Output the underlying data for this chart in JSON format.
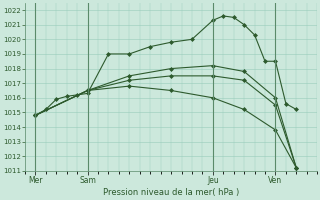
{
  "background_color": "#cce8dc",
  "grid_color": "#99ccbb",
  "line_color": "#2d5a2d",
  "title": "Pression niveau de la mer( hPa )",
  "ylim": [
    1011,
    1022.5
  ],
  "yticks": [
    1011,
    1012,
    1013,
    1014,
    1015,
    1016,
    1017,
    1018,
    1019,
    1020,
    1021,
    1022
  ],
  "day_labels": [
    "Mer",
    "Sam",
    "Jeu",
    "Ven"
  ],
  "day_positions": [
    0,
    5,
    17,
    23
  ],
  "vline_positions": [
    0,
    5,
    17,
    23
  ],
  "xlim": [
    -1,
    27
  ],
  "series": [
    {
      "x": [
        0,
        1,
        2,
        3,
        4,
        5,
        7,
        9,
        11,
        13,
        15,
        17,
        18,
        19,
        20,
        21,
        22,
        23,
        24,
        25
      ],
      "y": [
        1014.8,
        1015.2,
        1015.9,
        1016.1,
        1016.2,
        1016.3,
        1019.0,
        1019.0,
        1019.5,
        1019.8,
        1020.0,
        1021.3,
        1021.6,
        1021.5,
        1021.0,
        1020.3,
        1018.5,
        1018.5,
        1015.6,
        1015.2
      ]
    },
    {
      "x": [
        0,
        5,
        9,
        13,
        17,
        20,
        23,
        25
      ],
      "y": [
        1014.8,
        1016.5,
        1016.8,
        1016.5,
        1016.0,
        1015.2,
        1013.8,
        1011.2
      ]
    },
    {
      "x": [
        0,
        5,
        9,
        13,
        17,
        20,
        23,
        25
      ],
      "y": [
        1014.8,
        1016.5,
        1017.2,
        1017.5,
        1017.5,
        1017.2,
        1015.5,
        1011.2
      ]
    },
    {
      "x": [
        0,
        5,
        9,
        13,
        17,
        20,
        23,
        25
      ],
      "y": [
        1014.8,
        1016.5,
        1017.5,
        1018.0,
        1018.2,
        1017.8,
        1016.0,
        1011.2
      ]
    }
  ]
}
